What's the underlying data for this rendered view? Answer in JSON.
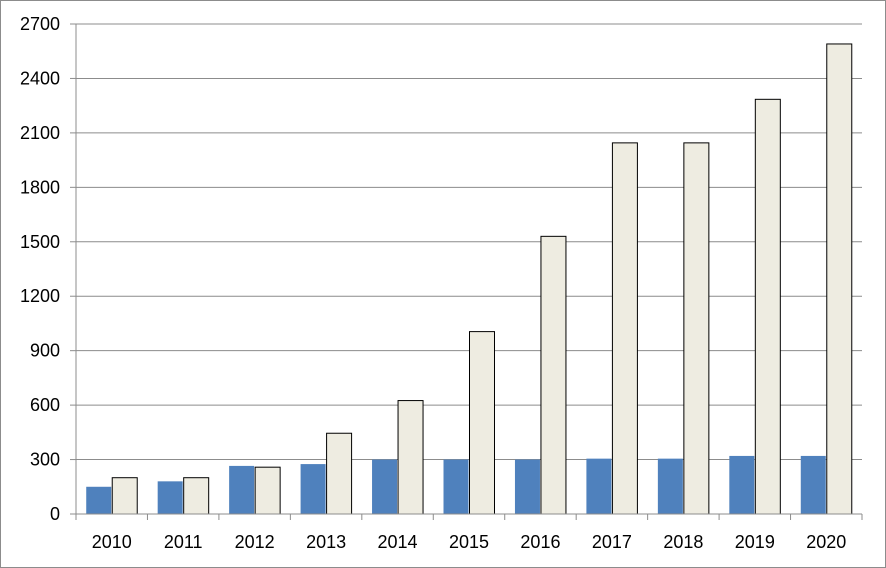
{
  "chart_data": {
    "type": "bar",
    "title": "",
    "xlabel": "",
    "ylabel": "",
    "categories": [
      "2010",
      "2011",
      "2012",
      "2013",
      "2014",
      "2015",
      "2016",
      "2017",
      "2018",
      "2019",
      "2020"
    ],
    "series": [
      {
        "values": [
          150,
          180,
          265,
          275,
          300,
          300,
          300,
          305,
          305,
          320,
          320
        ],
        "color": "#4f81bd"
      },
      {
        "values": [
          200,
          200,
          258,
          445,
          625,
          1005,
          1530,
          2045,
          2045,
          2285,
          2590
        ],
        "color": "#eeece1"
      }
    ],
    "ylim": [
      0,
      2700
    ],
    "yticks": [
      0,
      300,
      600,
      900,
      1200,
      1500,
      1800,
      2100,
      2400,
      2700
    ],
    "grid": true,
    "legend": "none"
  }
}
